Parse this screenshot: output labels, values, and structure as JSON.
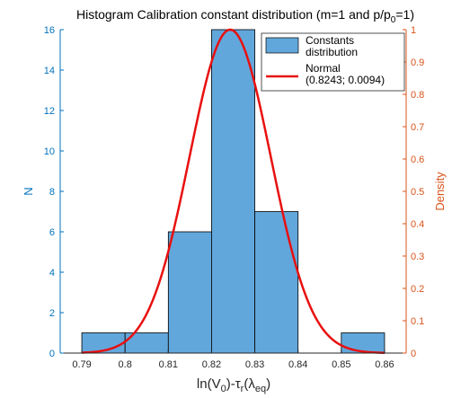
{
  "chart_data": {
    "type": "bar",
    "title": "Histogram Calibration constant distribution (m=1 and p/p",
    "title_sub": "0",
    "title_end": "=1)",
    "xlabel": {
      "p1": "ln(V",
      "s1": "0",
      "p2": ")-τ",
      "s2": "r",
      "p3": "(λ",
      "s3": "eq",
      "p4": ")"
    },
    "ylabel_left": "N",
    "ylabel_right": "Density",
    "xlim": [
      0.785,
      0.865
    ],
    "ylim_left": [
      0,
      16
    ],
    "ylim_right": [
      0,
      1
    ],
    "x_ticks": [
      "0.79",
      "0.8",
      "0.81",
      "0.82",
      "0.83",
      "0.84",
      "0.85",
      "0.86"
    ],
    "y_left_ticks": [
      "0",
      "2",
      "4",
      "6",
      "8",
      "10",
      "12",
      "14",
      "16"
    ],
    "y_right_ticks": [
      "0",
      "0.1",
      "0.2",
      "0.3",
      "0.4",
      "0.5",
      "0.6",
      "0.7",
      "0.8",
      "0.9",
      "1"
    ],
    "bins": [
      {
        "start": 0.79,
        "end": 0.8,
        "count": 1
      },
      {
        "start": 0.8,
        "end": 0.81,
        "count": 1
      },
      {
        "start": 0.81,
        "end": 0.82,
        "count": 6
      },
      {
        "start": 0.82,
        "end": 0.83,
        "count": 16
      },
      {
        "start": 0.83,
        "end": 0.84,
        "count": 7
      },
      {
        "start": 0.84,
        "end": 0.85,
        "count": 0
      },
      {
        "start": 0.85,
        "end": 0.86,
        "count": 1
      }
    ],
    "normal_fit": {
      "mean": 0.8243,
      "sd": 0.0094,
      "x_range": [
        0.79,
        0.86
      ]
    },
    "legend": {
      "placement": "top-right",
      "items": [
        {
          "line1": "Constants",
          "line2": "distribution",
          "type": "bar"
        },
        {
          "line1": "Normal",
          "line2": "(0.8243; 0.0094)",
          "type": "line"
        }
      ]
    },
    "colors": {
      "bar_fill": "#62a7db",
      "bar_edge": "#000000",
      "curve": "#e8100f",
      "left_axis": "#0072BD",
      "right_axis": "#D95319",
      "x_axis": "#262626"
    }
  }
}
